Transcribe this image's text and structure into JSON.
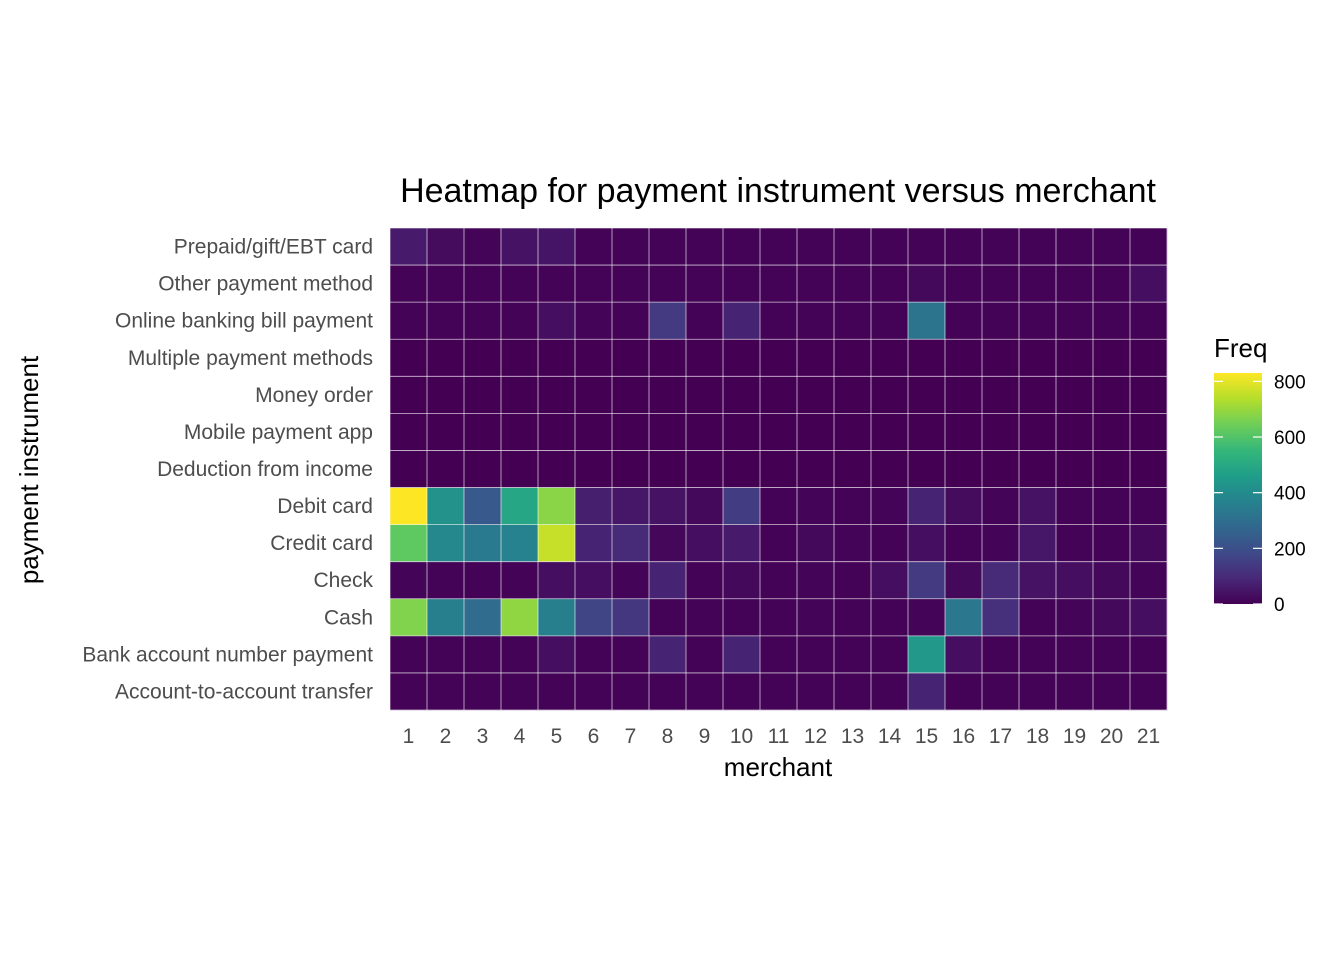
{
  "chart_data": {
    "type": "heatmap",
    "title": "Heatmap for payment instrument versus merchant",
    "xlabel": "merchant",
    "ylabel": "payment instrument",
    "x": [
      "1",
      "2",
      "3",
      "4",
      "5",
      "6",
      "7",
      "8",
      "9",
      "10",
      "11",
      "12",
      "13",
      "14",
      "15",
      "16",
      "17",
      "18",
      "19",
      "20",
      "21"
    ],
    "y": [
      "Prepaid/gift/EBT card",
      "Other payment method",
      "Online banking bill payment",
      "Multiple payment methods",
      "Money order",
      "Mobile payment app",
      "Deduction from income",
      "Debit card",
      "Credit card",
      "Check",
      "Cash",
      "Bank account number payment",
      "Account-to-account transfer"
    ],
    "values": [
      [
        60,
        25,
        10,
        40,
        45,
        5,
        5,
        5,
        5,
        5,
        5,
        5,
        5,
        5,
        5,
        5,
        5,
        5,
        5,
        5,
        5
      ],
      [
        5,
        5,
        5,
        5,
        5,
        5,
        5,
        5,
        5,
        5,
        5,
        5,
        5,
        5,
        20,
        5,
        5,
        5,
        5,
        5,
        30
      ],
      [
        5,
        5,
        5,
        5,
        30,
        10,
        5,
        140,
        5,
        80,
        5,
        5,
        5,
        5,
        320,
        5,
        5,
        5,
        5,
        5,
        5
      ],
      [
        0,
        0,
        0,
        0,
        0,
        0,
        0,
        0,
        0,
        0,
        0,
        0,
        0,
        0,
        0,
        0,
        0,
        0,
        0,
        0,
        0
      ],
      [
        0,
        0,
        0,
        0,
        0,
        0,
        0,
        0,
        0,
        0,
        0,
        0,
        0,
        0,
        0,
        0,
        0,
        0,
        0,
        0,
        0
      ],
      [
        0,
        0,
        0,
        0,
        0,
        0,
        0,
        0,
        0,
        0,
        0,
        0,
        0,
        0,
        0,
        0,
        0,
        0,
        0,
        0,
        0
      ],
      [
        0,
        0,
        0,
        0,
        0,
        0,
        0,
        0,
        0,
        0,
        0,
        0,
        0,
        0,
        0,
        0,
        0,
        0,
        0,
        0,
        0
      ],
      [
        830,
        420,
        230,
        490,
        680,
        70,
        50,
        40,
        20,
        150,
        5,
        10,
        5,
        10,
        80,
        25,
        10,
        40,
        5,
        5,
        5
      ],
      [
        620,
        390,
        340,
        370,
        760,
        80,
        100,
        15,
        30,
        60,
        5,
        20,
        10,
        5,
        30,
        5,
        10,
        50,
        5,
        5,
        20
      ],
      [
        10,
        5,
        5,
        5,
        30,
        30,
        10,
        80,
        5,
        20,
        5,
        10,
        5,
        30,
        140,
        20,
        100,
        40,
        30,
        20,
        10
      ],
      [
        670,
        360,
        290,
        690,
        360,
        170,
        130,
        5,
        5,
        5,
        5,
        10,
        5,
        5,
        10,
        330,
        110,
        5,
        10,
        20,
        30
      ],
      [
        5,
        5,
        5,
        5,
        30,
        5,
        5,
        80,
        5,
        80,
        5,
        5,
        5,
        5,
        440,
        30,
        5,
        5,
        5,
        5,
        5
      ],
      [
        5,
        5,
        5,
        5,
        5,
        5,
        5,
        5,
        5,
        5,
        5,
        5,
        5,
        5,
        80,
        5,
        5,
        5,
        5,
        5,
        5
      ]
    ],
    "legend": {
      "title": "Freq",
      "ticks": [
        0,
        200,
        400,
        600,
        800
      ],
      "range": [
        0,
        830
      ],
      "placement": "right"
    },
    "colorscale": "viridis",
    "grid": true
  }
}
